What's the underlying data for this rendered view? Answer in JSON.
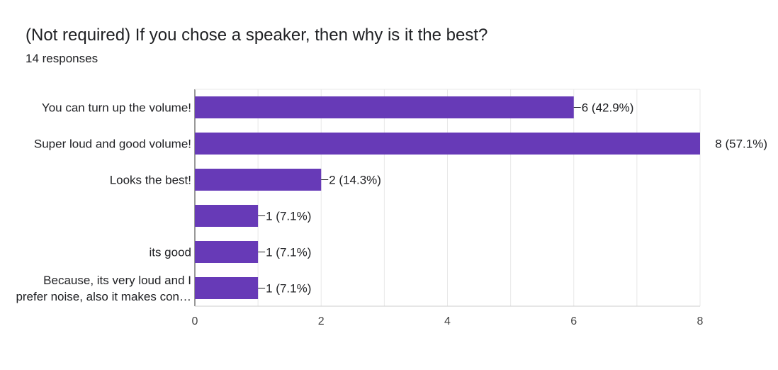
{
  "header": {
    "title": "(Not required) If you chose a speaker, then why is it the best?",
    "responses": "14 responses"
  },
  "chart_data": {
    "type": "bar",
    "orientation": "horizontal",
    "categories": [
      [
        "You can turn up the volume!"
      ],
      [
        "Super loud and good volume!"
      ],
      [
        "Looks the best!"
      ],
      [
        ""
      ],
      [
        "its good"
      ],
      [
        "Because, its very loud and I",
        "prefer noise, also it makes con…"
      ]
    ],
    "values": [
      6,
      8,
      2,
      1,
      1,
      1
    ],
    "data_labels": [
      "6 (42.9%)",
      "8 (57.1%)",
      "2 (14.3%)",
      "1 (7.1%)",
      "1 (7.1%)",
      "1 (7.1%)"
    ],
    "xlim": [
      0,
      8
    ],
    "x_ticks": [
      0,
      2,
      4,
      6,
      8
    ],
    "grid": true,
    "bar_color": "#673ab7"
  }
}
